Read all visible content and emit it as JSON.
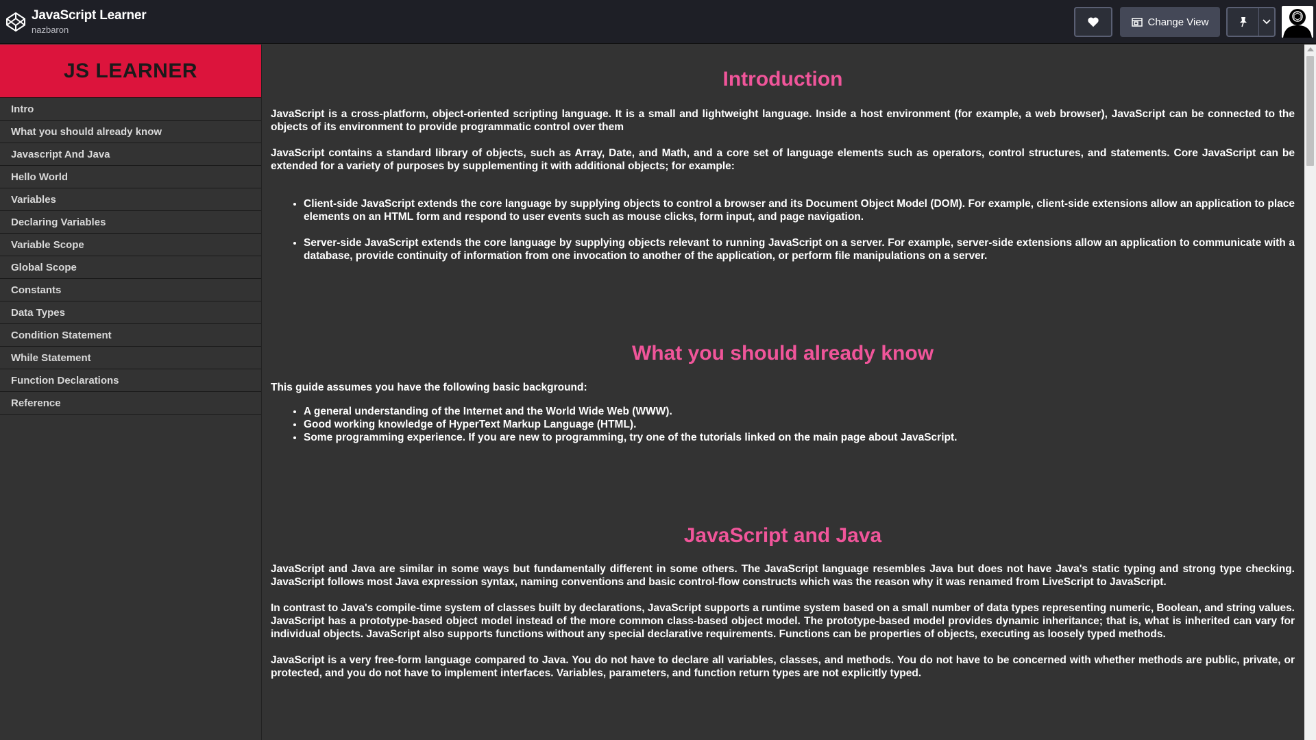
{
  "topbar": {
    "app_title": "JavaScript Learner",
    "username": "nazbaron",
    "change_view_label": "Change View"
  },
  "sidebar": {
    "logo": "JS LEARNER",
    "items": [
      {
        "label": "Intro"
      },
      {
        "label": "What you should already know"
      },
      {
        "label": "Javascript And Java"
      },
      {
        "label": "Hello World"
      },
      {
        "label": "Variables"
      },
      {
        "label": "Declaring Variables"
      },
      {
        "label": "Variable Scope"
      },
      {
        "label": "Global Scope"
      },
      {
        "label": "Constants"
      },
      {
        "label": "Data Types"
      },
      {
        "label": "Condition Statement"
      },
      {
        "label": "While Statement"
      },
      {
        "label": "Function Declarations"
      },
      {
        "label": "Reference"
      }
    ]
  },
  "main": {
    "sections": [
      {
        "title": "Introduction",
        "paragraphs": [
          "JavaScript is a cross-platform, object-oriented scripting language. It is a small and lightweight language. Inside a host environment (for example, a web browser), JavaScript can be connected to the objects of its environment to provide programmatic control over them",
          "JavaScript contains a standard library of objects, such as Array, Date, and Math, and a core set of language elements such as operators, control structures, and statements. Core JavaScript can be extended for a variety of purposes by supplementing it with additional objects; for example:"
        ],
        "bullets": [
          "Client-side JavaScript extends the core language by supplying objects to control a browser and its Document Object Model (DOM). For example, client-side extensions allow an application to place elements on an HTML form and respond to user events such as mouse clicks, form input, and page navigation.",
          "Server-side JavaScript extends the core language by supplying objects relevant to running JavaScript on a server. For example, server-side extensions allow an application to communicate with a database, provide continuity of information from one invocation to another of the application, or perform file manipulations on a server."
        ]
      },
      {
        "title": "What you should already know",
        "paragraphs": [
          "This guide assumes you have the following basic background:"
        ],
        "bullets": [
          "A general understanding of the Internet and the World Wide Web (WWW).",
          "Good working knowledge of HyperText Markup Language (HTML).",
          "Some programming experience. If you are new to programming, try one of the tutorials linked on the main page about JavaScript."
        ]
      },
      {
        "title": "JavaScript and Java",
        "paragraphs": [
          "JavaScript and Java are similar in some ways but fundamentally different in some others. The JavaScript language resembles Java but does not have Java's static typing and strong type checking. JavaScript follows most Java expression syntax, naming conventions and basic control-flow constructs which was the reason why it was renamed from LiveScript to JavaScript.",
          "In contrast to Java's compile-time system of classes built by declarations, JavaScript supports a runtime system based on a small number of data types representing numeric, Boolean, and string values. JavaScript has a prototype-based object model instead of the more common class-based object model. The prototype-based model provides dynamic inheritance; that is, what is inherited can vary for individual objects. JavaScript also supports functions without any special declarative requirements. Functions can be properties of objects, executing as loosely typed methods.",
          "JavaScript is a very free-form language compared to Java. You do not have to declare all variables, classes, and methods. You do not have to be concerned with whether methods are public, private, or protected, and you do not have to implement interfaces. Variables, parameters, and function return types are not explicitly typed."
        ]
      }
    ]
  },
  "icons": {
    "brand": "codepen-logo-icon",
    "heart": "heart-icon",
    "change_view": "layout-icon",
    "pin": "pin-icon",
    "chevron": "chevron-down-icon",
    "avatar": "user-avatar"
  },
  "colors": {
    "topbar_bg": "#1e1f26",
    "logo_bg": "#dc143c",
    "heading": "#f0559a",
    "content_bg": "#333333"
  }
}
